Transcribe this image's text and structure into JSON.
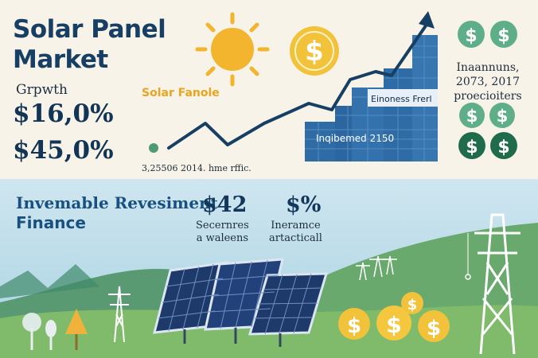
{
  "header": {
    "title_line1": "Solar Panel",
    "title_line2": "Market",
    "growth_label": "Grpwth",
    "stat1": "$16,0%",
    "stat2": "$45,0%"
  },
  "chart": {
    "sun_label": "Solar Fanole",
    "bar_label_upper": "Einoness Frerl",
    "bar_label_lower": "Inqibemed 2150",
    "note": "3,25506 2014. hme rffic."
  },
  "right_panel": {
    "text_line1": "Inaannuns,",
    "text_line2": "2073, 2017",
    "text_line3": "proecioiters"
  },
  "finance": {
    "title_line1": "Invemable Revesiment",
    "title_line2": "Finance",
    "stat1_value": "$42",
    "stat1_caption_line1": "Secernres",
    "stat1_caption_line2": "a waleens",
    "stat2_value": "$%",
    "stat2_caption_line1": "Ineramce",
    "stat2_caption_line2": "artacticall"
  },
  "icons": [
    "sun-icon",
    "dollar-coin-icon",
    "transmission-tower-icon",
    "solar-panel-icon",
    "tree-icon"
  ],
  "colors": {
    "navy": "#163f63",
    "bar_blue": "#2f6ca6",
    "sun_yellow": "#f2b52d",
    "coin_gold": "#f2c23a",
    "green_light": "#5fae8a",
    "green_dark": "#1f6b4c",
    "grass": "#79b56c"
  }
}
